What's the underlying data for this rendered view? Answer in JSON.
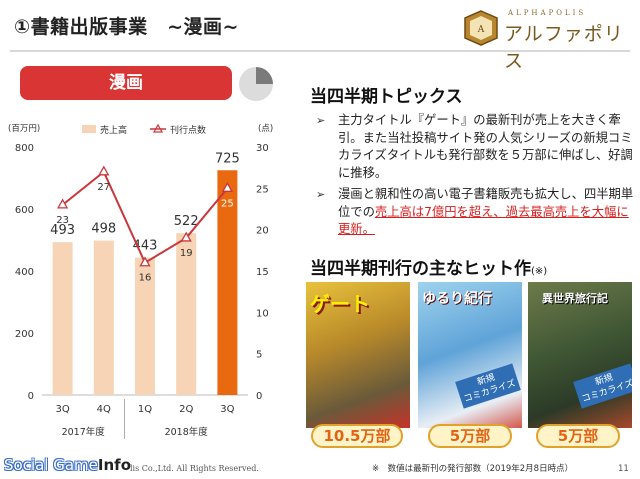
{
  "header": {
    "title": "①書籍出版事業　~漫画~",
    "logo_sub": "ALPHAPOLIS",
    "logo_main": "アルファポリス"
  },
  "segment": {
    "label": "漫画",
    "share_fraction": 0.25,
    "share_color": "#7a7a7a",
    "rest_color": "#dcdcdc"
  },
  "chart_data": {
    "type": "bar",
    "categories": [
      "3Q",
      "4Q",
      "1Q",
      "2Q",
      "3Q"
    ],
    "year_groups": [
      {
        "label": "2017年度",
        "span": [
          0,
          1
        ]
      },
      {
        "label": "2018年度",
        "span": [
          2,
          4
        ]
      }
    ],
    "series": [
      {
        "name": "売上高",
        "kind": "bar",
        "axis": "left",
        "values": [
          493,
          498,
          443,
          522,
          725
        ],
        "color": "#f7d4b5",
        "highlight_color": "#e8690f",
        "highlight_index": 4
      },
      {
        "name": "刊行点数",
        "kind": "line",
        "axis": "right",
        "values": [
          23,
          27,
          16,
          19,
          25
        ],
        "color": "#c9373d"
      }
    ],
    "left_axis_unit": "(百万円)",
    "right_axis_unit": "(点)",
    "ylim_left": [
      0,
      800
    ],
    "ylim_right": [
      0,
      30
    ],
    "left_ticks": [
      0,
      200,
      400,
      600,
      800
    ],
    "right_ticks": [
      0,
      5,
      10,
      15,
      20,
      25,
      30
    ],
    "legend_position": "top",
    "grid": false
  },
  "topics": {
    "heading": "当四半期トピックス",
    "bullet_mark": "➢",
    "bullet1": "主力タイトル『ゲート』の最新刊が売上を大きく牽引。また当社投稿サイト発の人気シリーズの新規コミカライズタイトルも発行部数を５万部に伸ばし、好調に推移。",
    "bullet2_plain": "漫画と親和性の高い電子書籍販売も拡大し、四半期単位での",
    "bullet2_highlight": "売上高は7億円を超え、過去最高売上を大幅に更新。"
  },
  "hits": {
    "heading": "当四半期刊行の主なヒット作",
    "note_mark": "(※)",
    "items": [
      {
        "cover_title": "ゲート",
        "tag": "",
        "sales": "10.5万部"
      },
      {
        "cover_title": "ゆるり紀行",
        "tag": "新規\nコミカライズ",
        "sales": "5万部"
      },
      {
        "cover_title": "異世界旅行記",
        "tag": "新規\nコミカライズ",
        "sales": "5万部"
      }
    ]
  },
  "footer": {
    "footnote": "※　数値は最新刊の発行部数（2019年2月8日時点）",
    "copyright": "lis Co.,Ltd.  All Rights Reserved.",
    "page": "11",
    "watermark_plain": "Social Game",
    "watermark_bold": "Info"
  }
}
